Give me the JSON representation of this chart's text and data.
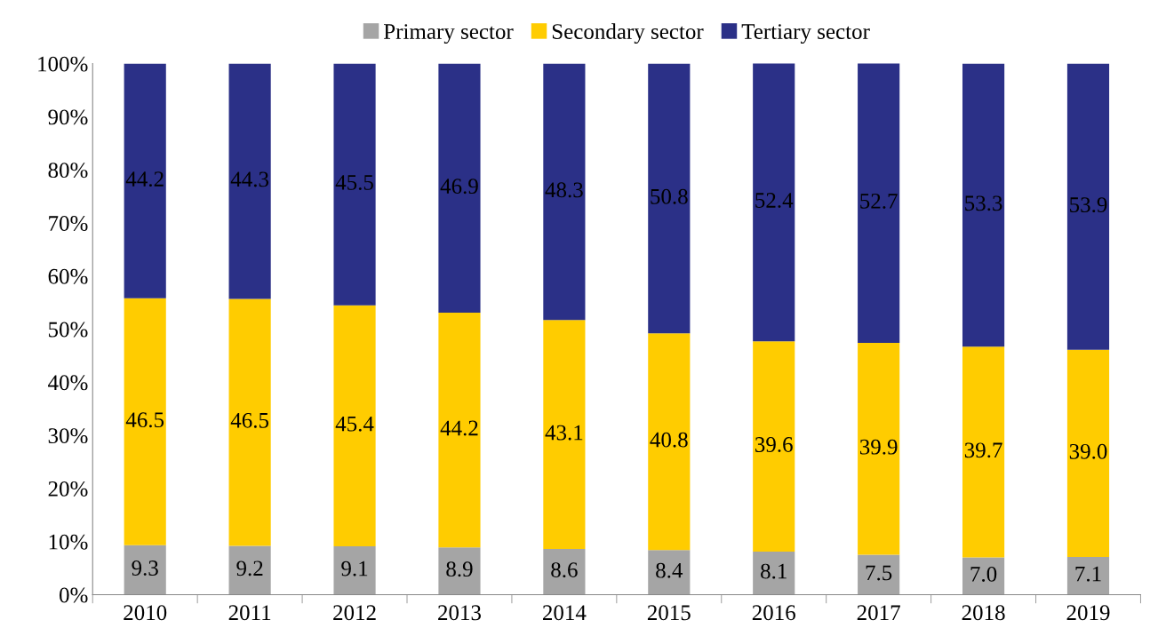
{
  "chart_data": {
    "type": "bar",
    "stacked": true,
    "legend": "top",
    "grid": false,
    "categories": [
      "2010",
      "2011",
      "2012",
      "2013",
      "2014",
      "2015",
      "2016",
      "2017",
      "2018",
      "2019"
    ],
    "ylim": [
      0,
      100
    ],
    "yticks": [
      {
        "value": 0,
        "label": "0%"
      },
      {
        "value": 10,
        "label": "10%"
      },
      {
        "value": 20,
        "label": "20%"
      },
      {
        "value": 30,
        "label": "30%"
      },
      {
        "value": 40,
        "label": "40%"
      },
      {
        "value": 50,
        "label": "50%"
      },
      {
        "value": 60,
        "label": "60%"
      },
      {
        "value": 70,
        "label": "70%"
      },
      {
        "value": 80,
        "label": "80%"
      },
      {
        "value": 90,
        "label": "90%"
      },
      {
        "value": 100,
        "label": "100%"
      }
    ],
    "series": [
      {
        "name": "Primary sector",
        "color": "#a5a5a5",
        "values": [
          9.3,
          9.2,
          9.1,
          8.9,
          8.6,
          8.4,
          8.1,
          7.5,
          7.0,
          7.1
        ],
        "value_labels": [
          "9.3",
          "9.2",
          "9.1",
          "8.9",
          "8.6",
          "8.4",
          "8.1",
          "7.5",
          "7.0",
          "7.1"
        ]
      },
      {
        "name": "Secondary sector",
        "color": "#ffcc00",
        "values": [
          46.5,
          46.5,
          45.4,
          44.2,
          43.1,
          40.8,
          39.6,
          39.9,
          39.7,
          39.0
        ],
        "value_labels": [
          "46.5",
          "46.5",
          "45.4",
          "44.2",
          "43.1",
          "40.8",
          "39.6",
          "39.9",
          "39.7",
          "39.0"
        ]
      },
      {
        "name": "Tertiary sector",
        "color": "#2b3087",
        "values": [
          44.2,
          44.3,
          45.5,
          46.9,
          48.3,
          50.8,
          52.4,
          52.7,
          53.3,
          53.9
        ],
        "value_labels": [
          "44.2",
          "44.3",
          "45.5",
          "46.9",
          "48.3",
          "50.8",
          "52.4",
          "52.7",
          "53.3",
          "53.9"
        ]
      }
    ]
  }
}
